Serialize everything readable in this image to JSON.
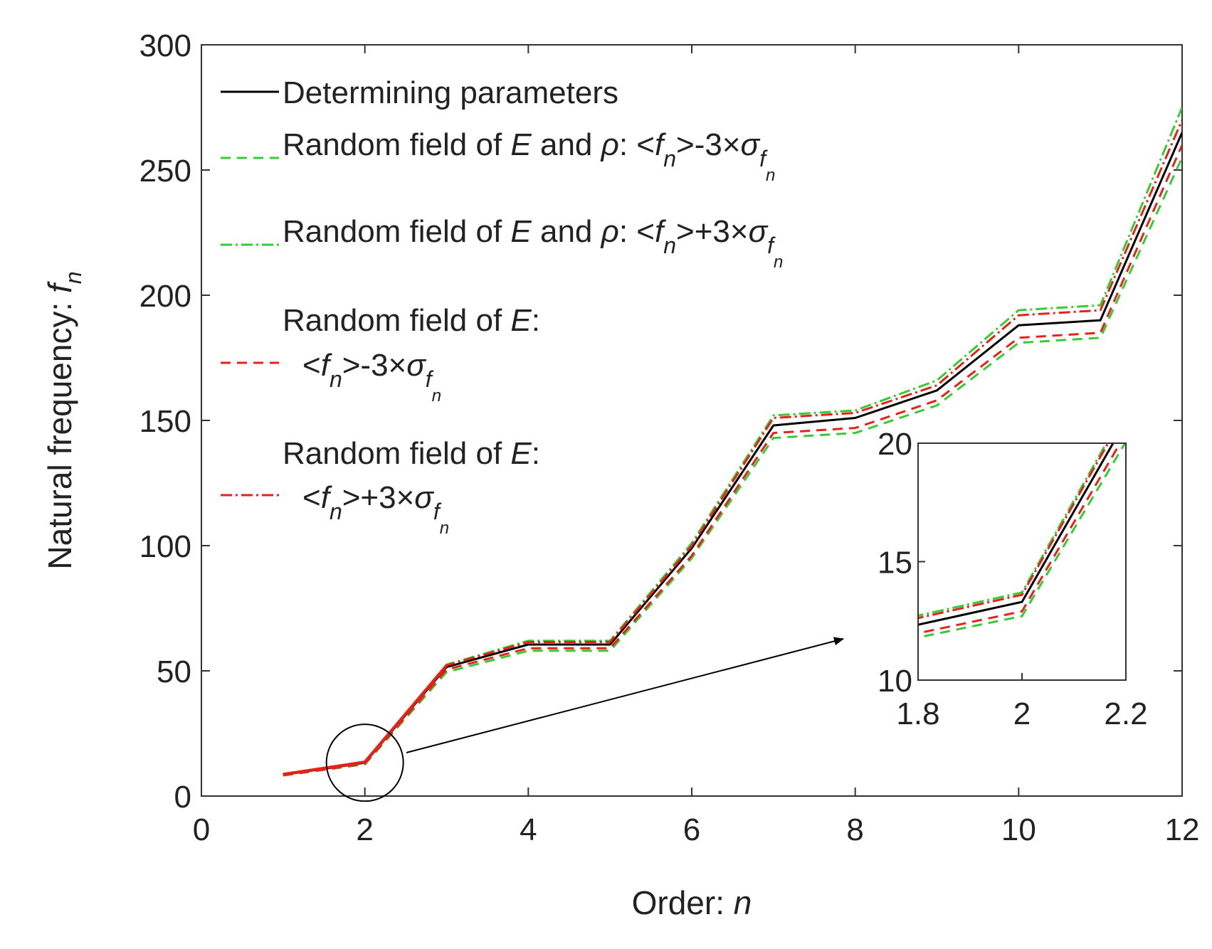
{
  "chart_data": [
    {
      "type": "line",
      "xlabel": "Order: ",
      "xlabel_var": "n",
      "ylabel": "Natural frequency: ",
      "ylabel_var": "f",
      "ylabel_sub": "n",
      "xlim": [
        0,
        12
      ],
      "ylim": [
        0,
        300
      ],
      "xticks": [
        "0",
        "2",
        "4",
        "6",
        "8",
        "10",
        "12"
      ],
      "xtick_values": [
        0,
        2,
        4,
        6,
        8,
        10,
        12
      ],
      "yticks": [
        "0",
        "50",
        "100",
        "150",
        "200",
        "250",
        "300"
      ],
      "ytick_values": [
        0,
        50,
        100,
        150,
        200,
        250,
        300
      ],
      "grid": false,
      "legend_position": "top-left",
      "x": [
        1,
        2,
        3,
        4,
        5,
        6,
        7,
        8,
        9,
        10,
        11,
        12
      ],
      "series": [
        {
          "name": "Determining parameters",
          "color": "#000000",
          "dash": "solid",
          "values": [
            8.5,
            13.3,
            51.5,
            60.5,
            60.5,
            99,
            148,
            151,
            162,
            188,
            190,
            265
          ]
        },
        {
          "name": "Random field of E and ρ: <fn>-3×σfn",
          "color": "#33cc33",
          "dash": "dashed",
          "values": [
            8.2,
            12.7,
            49.5,
            58,
            58,
            95,
            143,
            145,
            156,
            181,
            183,
            255
          ]
        },
        {
          "name": "Random field of E and ρ: <fn>+3×σfn",
          "color": "#33cc33",
          "dash": "dashdot",
          "values": [
            8.8,
            13.7,
            52.5,
            62,
            62,
            101,
            152,
            154,
            166,
            194,
            196,
            275
          ]
        },
        {
          "name": "Random field of E: <fn>-3×σfn",
          "color": "#e8201a",
          "dash": "dashed",
          "values": [
            8.3,
            12.9,
            50.5,
            59,
            59,
            96,
            145,
            147,
            158,
            183,
            185,
            260
          ]
        },
        {
          "name": "Random field of E: <fn>+3×σfn",
          "color": "#e8201a",
          "dash": "dashdot",
          "values": [
            8.7,
            13.6,
            52.2,
            61.5,
            61.5,
            100,
            151,
            153,
            164,
            192,
            194,
            270
          ]
        }
      ],
      "legend": [
        {
          "line1": "Determining parameters"
        },
        {
          "pre": "Random field of ",
          "var1": "E",
          "mid": " and ",
          "var2": "ρ",
          "post": ": <",
          "f": "f",
          "n": "n",
          "op": ">-3×",
          "sigma": "σ",
          "sf": "f"
        },
        {
          "pre": "Random field of ",
          "var1": "E",
          "mid": " and ",
          "var2": "ρ",
          "post": ": <",
          "f": "f",
          "n": "n",
          "op": ">+3×",
          "sigma": "σ",
          "sf": "f"
        },
        {
          "pre": "Random field of ",
          "var1": "E",
          "post": ":",
          "l2pre": "<",
          "f": "f",
          "n": "n",
          "op": ">-3×",
          "sigma": "σ",
          "sf": "f"
        },
        {
          "pre": "Random field of ",
          "var1": "E",
          "post": ":",
          "l2pre": "<",
          "f": "f",
          "n": "n",
          "op": ">+3×",
          "sigma": "σ",
          "sf": "f"
        }
      ],
      "annotations": [
        {
          "type": "circle",
          "x": 2,
          "y": 13.3
        },
        {
          "type": "arrow",
          "target": "inset"
        }
      ]
    },
    {
      "type": "line",
      "role": "inset",
      "xlim": [
        1.8,
        2.2
      ],
      "ylim": [
        10,
        20
      ],
      "xticks": [
        "1.8",
        "2",
        "2.2"
      ],
      "xtick_values": [
        1.8,
        2.0,
        2.2
      ],
      "yticks": [
        "10",
        "15",
        "20"
      ],
      "ytick_values": [
        10,
        15,
        20
      ]
    }
  ]
}
